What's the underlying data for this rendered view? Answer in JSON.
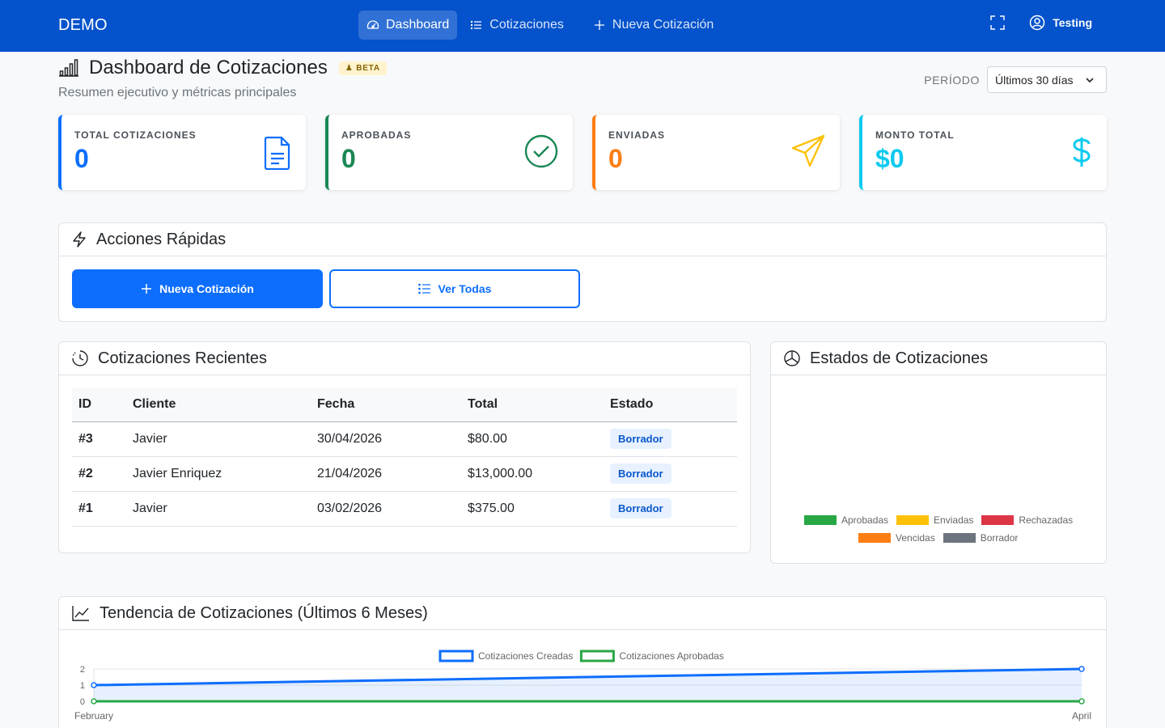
{
  "navbar": {
    "brand": "DEMO",
    "links": [
      {
        "label": "Dashboard",
        "icon": "speedometer-icon",
        "active": true
      },
      {
        "label": "Cotizaciones",
        "icon": "list-icon",
        "active": false
      },
      {
        "label": "Nueva Cotización",
        "icon": "plus-icon",
        "active": false
      }
    ],
    "user": "Testing"
  },
  "header": {
    "title": "Dashboard de Cotizaciones",
    "badge": "BETA",
    "subtitle": "Resumen ejecutivo y métricas principales",
    "period_label": "PERÍODO",
    "period_value": "Últimos 30 días"
  },
  "stats": [
    {
      "label": "TOTAL COTIZACIONES",
      "value": "0",
      "color": "#0d6efd",
      "icon": "document-icon"
    },
    {
      "label": "APROBADAS",
      "value": "0",
      "color": "#198754",
      "icon": "check-circle-icon"
    },
    {
      "label": "ENVIADAS",
      "value": "0",
      "color": "#fd7e14",
      "icon": "send-icon"
    },
    {
      "label": "MONTO TOTAL",
      "value": "$0",
      "color": "#0dcaf0",
      "icon": "dollar-icon"
    }
  ],
  "quick_actions": {
    "title": "Acciones Rápidas",
    "new_label": "Nueva Cotización",
    "view_all_label": "Ver Todas"
  },
  "recent": {
    "title": "Cotizaciones Recientes",
    "columns": [
      "ID",
      "Cliente",
      "Fecha",
      "Total",
      "Estado"
    ],
    "rows": [
      {
        "id": "#3",
        "client": "Javier",
        "date": "30/04/2026",
        "total": "$80.00",
        "status": "Borrador"
      },
      {
        "id": "#2",
        "client": "Javier Enriquez",
        "date": "21/04/2026",
        "total": "$13,000.00",
        "status": "Borrador"
      },
      {
        "id": "#1",
        "client": "Javier",
        "date": "03/02/2026",
        "total": "$375.00",
        "status": "Borrador"
      }
    ]
  },
  "status_chart": {
    "title": "Estados de Cotizaciones",
    "legend": [
      {
        "label": "Aprobadas",
        "color": "#28a745"
      },
      {
        "label": "Enviadas",
        "color": "#ffc107"
      },
      {
        "label": "Rechazadas",
        "color": "#dc3545"
      },
      {
        "label": "Vencidas",
        "color": "#fd7e14"
      },
      {
        "label": "Borrador",
        "color": "#6c757d"
      }
    ]
  },
  "trend": {
    "title": "Tendencia de Cotizaciones (Últimos 6 Meses)"
  },
  "chart_data": {
    "type": "line",
    "x": [
      "February",
      "April"
    ],
    "series": [
      {
        "name": "Cotizaciones Creadas",
        "values": [
          1,
          2
        ],
        "color": "#0d6efd"
      },
      {
        "name": "Cotizaciones Aprobadas",
        "values": [
          0,
          0
        ],
        "color": "#28a745"
      }
    ],
    "ylim": [
      0,
      2
    ],
    "yticks": [
      "0",
      "1",
      "2"
    ],
    "grid": true,
    "legend_position": "top"
  }
}
